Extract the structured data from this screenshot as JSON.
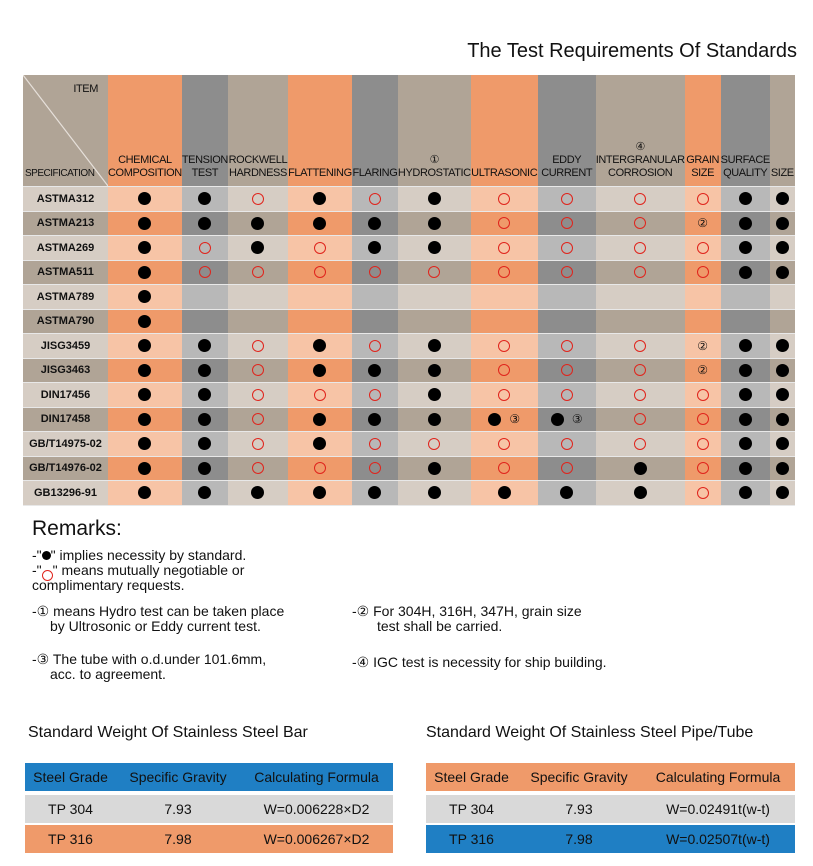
{
  "title": "The Test Requirements Of Standards",
  "corner": {
    "item": "ITEM",
    "specification": "SPECIFICATION"
  },
  "columns": [
    {
      "label": "CHEMICAL COMPOSITION",
      "color": "#ef9a6a"
    },
    {
      "label": "TENSION TEST",
      "color": "#8d8d8d"
    },
    {
      "label": "ROCKWELL HARDNESS",
      "color": "#b0a496"
    },
    {
      "label": "FLATTENING",
      "color": "#ef9a6a"
    },
    {
      "label": "FLARING",
      "color": "#8d8d8d"
    },
    {
      "label": "① HYDROSTATIC",
      "color": "#b0a496"
    },
    {
      "label": "ULTRASONIC",
      "color": "#ef9a6a"
    },
    {
      "label": "EDDY CURRENT",
      "color": "#8d8d8d"
    },
    {
      "label": "④ INTERGRANULAR CORROSION",
      "color": "#b0a496"
    },
    {
      "label": "GRAIN SIZE",
      "color": "#ef9a6a"
    },
    {
      "label": "SURFACE QUALITY",
      "color": "#8d8d8d"
    },
    {
      "label": "SIZE",
      "color": "#b0a496"
    }
  ],
  "rows": [
    {
      "spec": "ASTMA312",
      "cells": [
        "D",
        "D",
        "O",
        "D",
        "O",
        "D",
        "O",
        "O",
        "O",
        "O",
        "D",
        "D"
      ]
    },
    {
      "spec": "ASTMA213",
      "cells": [
        "D",
        "D",
        "D",
        "D",
        "D",
        "D",
        "O",
        "O",
        "O",
        "②",
        "D",
        "D"
      ]
    },
    {
      "spec": "ASTMA269",
      "cells": [
        "D",
        "O",
        "D",
        "O",
        "D",
        "D",
        "O",
        "O",
        "O",
        "O",
        "D",
        "D"
      ]
    },
    {
      "spec": "ASTMA511",
      "cells": [
        "D",
        "O",
        "O",
        "O",
        "O",
        "O",
        "O",
        "O",
        "O",
        "O",
        "D",
        "D"
      ]
    },
    {
      "spec": "ASTMA789",
      "cells": [
        "D",
        "",
        "",
        "",
        "",
        "",
        "",
        "",
        "",
        "",
        "",
        ""
      ]
    },
    {
      "spec": "ASTMA790",
      "cells": [
        "D",
        "",
        "",
        "",
        "",
        "",
        "",
        "",
        "",
        "",
        "",
        ""
      ]
    },
    {
      "spec": "JISG3459",
      "cells": [
        "D",
        "D",
        "O",
        "D",
        "O",
        "D",
        "O",
        "O",
        "O",
        "②",
        "D",
        "D"
      ]
    },
    {
      "spec": "JISG3463",
      "cells": [
        "D",
        "D",
        "O",
        "D",
        "D",
        "D",
        "O",
        "O",
        "O",
        "②",
        "D",
        "D"
      ]
    },
    {
      "spec": "DIN17456",
      "cells": [
        "D",
        "D",
        "O",
        "O",
        "O",
        "D",
        "O",
        "O",
        "O",
        "O",
        "D",
        "D"
      ]
    },
    {
      "spec": "DIN17458",
      "cells": [
        "D",
        "D",
        "O",
        "D",
        "D",
        "D",
        "D③",
        "D③",
        "O",
        "O",
        "D",
        "D"
      ]
    },
    {
      "spec": "GB/T14975-02",
      "cells": [
        "D",
        "D",
        "O",
        "D",
        "O",
        "O",
        "O",
        "O",
        "O",
        "O",
        "D",
        "D"
      ]
    },
    {
      "spec": "GB/T14976-02",
      "cells": [
        "D",
        "D",
        "O",
        "O",
        "O",
        "D",
        "O",
        "O",
        "D",
        "O",
        "D",
        "D"
      ]
    },
    {
      "spec": "GB13296-91",
      "cells": [
        "D",
        "D",
        "D",
        "D",
        "D",
        "D",
        "D",
        "D",
        "D",
        "O",
        "D",
        "D"
      ]
    }
  ],
  "row_shades": {
    "light": [
      "#f7c4a6",
      "#b8b8b8",
      "#d6cdc4"
    ],
    "dark": [
      "#ef9a6a",
      "#8d8d8d",
      "#b0a496"
    ]
  },
  "remarks": {
    "heading": "Remarks:",
    "r1_pre": "-\"",
    "r1_post": "\" implies necessity by standard.",
    "r2_pre": "-\"",
    "r2_post": "\" means mutually negotiable or",
    "r2_line2": "complimentary requests.",
    "r3_line1": "-① means Hydro test can be taken place",
    "r3_line2": "by Ultrosonic or Eddy current test.",
    "r4_line1": "-② For 304H, 316H, 347H, grain size",
    "r4_line2": "test shall be carried.",
    "r5_line1": "-③ The tube with o.d.under 101.6mm,",
    "r5_line2": "acc. to agreement.",
    "r6": "-④ IGC test is necessity for ship building."
  },
  "bar_table": {
    "title": "Standard Weight Of Stainless Steel Bar",
    "headers": [
      "Steel Grade",
      "Specific Gravity",
      "Calculating Formula"
    ],
    "header_color": "#1f7fc4",
    "rows": [
      {
        "grade": "TP 304",
        "gravity": "7.93",
        "formula": "W=0.006228×D2",
        "color": "#d9d9d9"
      },
      {
        "grade": "TP 316",
        "gravity": "7.98",
        "formula": "W=0.006267×D2",
        "color": "#ef9a6a"
      }
    ]
  },
  "pipe_table": {
    "title": "Standard Weight Of Stainless Steel Pipe/Tube",
    "headers": [
      "Steel Grade",
      "Specific Gravity",
      "Calculating Formula"
    ],
    "header_color": "#ef9a6a",
    "rows": [
      {
        "grade": "TP 304",
        "gravity": "7.93",
        "formula": "W=0.02491t(w-t)",
        "color": "#d9d9d9"
      },
      {
        "grade": "TP 316",
        "gravity": "7.98",
        "formula": "W=0.02507t(w-t)",
        "color": "#1f7fc4"
      }
    ]
  }
}
